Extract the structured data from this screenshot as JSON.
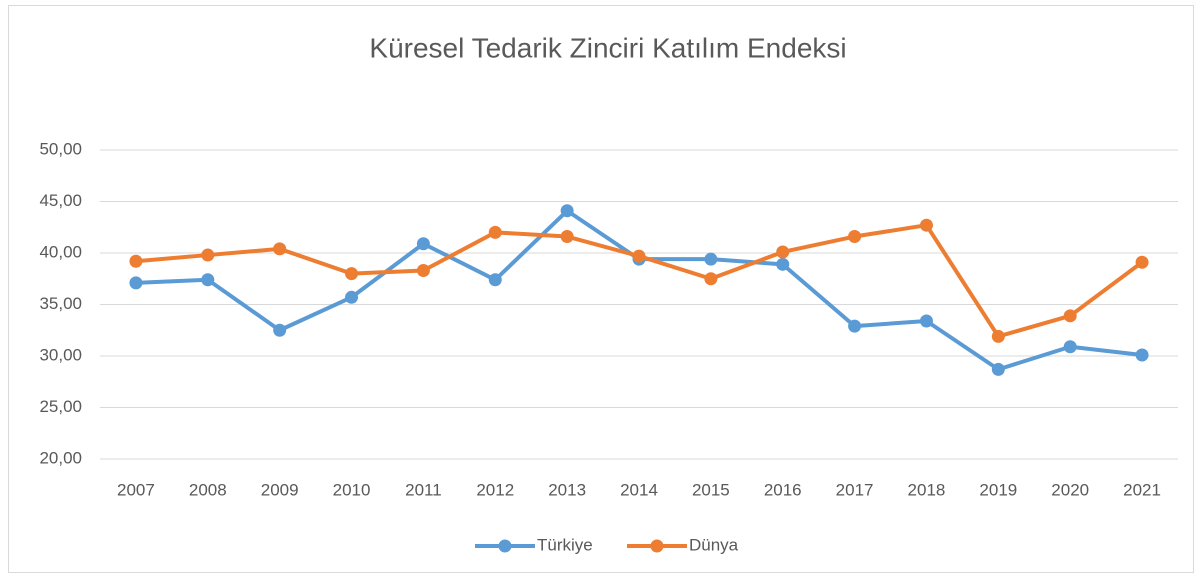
{
  "chart_data": {
    "type": "line",
    "title": "Küresel Tedarik Zinciri Katılım Endeksi",
    "categories": [
      "2007",
      "2008",
      "2009",
      "2010",
      "2011",
      "2012",
      "2013",
      "2014",
      "2015",
      "2016",
      "2017",
      "2018",
      "2019",
      "2020",
      "2021"
    ],
    "series": [
      {
        "name": "Türkiye",
        "color": "#5b9bd5",
        "values": [
          37.1,
          37.4,
          32.5,
          35.7,
          40.9,
          37.4,
          44.1,
          39.4,
          39.4,
          38.9,
          32.9,
          33.4,
          28.7,
          30.9,
          30.1
        ]
      },
      {
        "name": "Dünya",
        "color": "#ed7d31",
        "values": [
          39.2,
          39.8,
          40.4,
          38.0,
          38.3,
          42.0,
          41.6,
          39.7,
          37.5,
          40.1,
          41.6,
          42.7,
          31.9,
          33.9,
          39.1
        ]
      }
    ],
    "ylim": [
      20,
      50
    ],
    "yticks": [
      {
        "value": 20,
        "label": "20,00"
      },
      {
        "value": 25,
        "label": "25,00"
      },
      {
        "value": 30,
        "label": "30,00"
      },
      {
        "value": 35,
        "label": "35,00"
      },
      {
        "value": 40,
        "label": "40,00"
      },
      {
        "value": 45,
        "label": "45,00"
      },
      {
        "value": 50,
        "label": "50,00"
      }
    ],
    "grid": true,
    "legend": "bottom"
  }
}
